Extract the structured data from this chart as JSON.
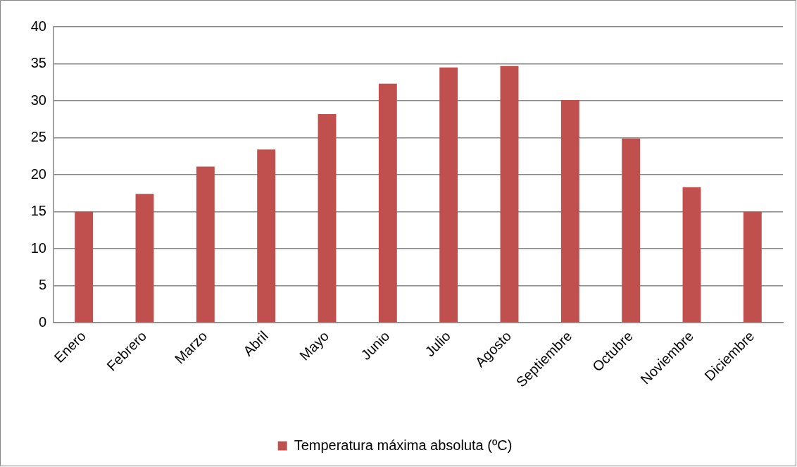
{
  "chart_data": {
    "type": "bar",
    "categories": [
      "Enero",
      "Febrero",
      "Marzo",
      "Abril",
      "Mayo",
      "Junio",
      "Julio",
      "Agosto",
      "Septiembre",
      "Octubre",
      "Noviembre",
      "Diciembre"
    ],
    "series": [
      {
        "name": "Temperatura máxima absoluta (ºC)",
        "color": "#c0504d",
        "values": [
          15,
          17.4,
          21.1,
          23.4,
          28.2,
          32.3,
          34.5,
          34.7,
          30.1,
          24.9,
          18.3,
          15
        ]
      }
    ],
    "ylim": [
      0,
      40
    ],
    "yticks": [
      0,
      5,
      10,
      15,
      20,
      25,
      30,
      35,
      40
    ],
    "grid": "y",
    "legend": "bottom"
  }
}
